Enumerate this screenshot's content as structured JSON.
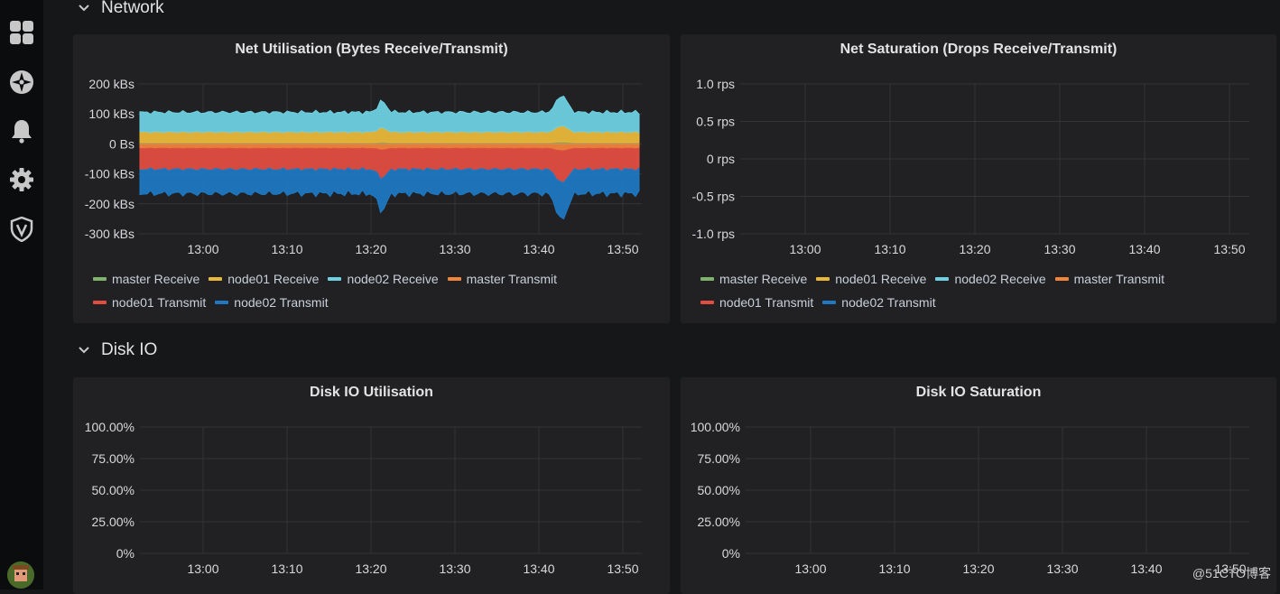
{
  "sidebar": {
    "icons": [
      "dashboards-icon",
      "explore-icon",
      "alerting-icon",
      "configuration-icon",
      "server-admin-icon"
    ]
  },
  "rows": [
    {
      "title": "Network"
    },
    {
      "title": "Disk IO"
    }
  ],
  "panels": {
    "net_util": {
      "title": "Net Utilisation (Bytes Receive/Transmit)",
      "y_ticks": [
        "200 kBs",
        "100 kBs",
        "0 Bs",
        "-100 kBs",
        "-200 kBs",
        "-300 kBs"
      ],
      "x_ticks": [
        "13:00",
        "13:10",
        "13:20",
        "13:30",
        "13:40",
        "13:50"
      ]
    },
    "net_sat": {
      "title": "Net Saturation (Drops Receive/Transmit)",
      "y_ticks": [
        "1.0 rps",
        "0.5 rps",
        "0 rps",
        "-0.5 rps",
        "-1.0 rps"
      ],
      "x_ticks": [
        "13:00",
        "13:10",
        "13:20",
        "13:30",
        "13:40",
        "13:50"
      ]
    },
    "disk_util": {
      "title": "Disk IO Utilisation",
      "y_ticks": [
        "100.00%",
        "75.00%",
        "50.00%",
        "25.00%",
        "0%"
      ],
      "x_ticks": [
        "13:00",
        "13:10",
        "13:20",
        "13:30",
        "13:40",
        "13:50"
      ]
    },
    "disk_sat": {
      "title": "Disk IO Saturation",
      "y_ticks": [
        "100.00%",
        "75.00%",
        "50.00%",
        "25.00%",
        "0%"
      ],
      "x_ticks": [
        "13:00",
        "13:10",
        "13:20",
        "13:30",
        "13:40",
        "13:50"
      ]
    }
  },
  "legend": [
    {
      "label": "master Receive",
      "color": "#7eb26d"
    },
    {
      "label": "node01 Receive",
      "color": "#eab839"
    },
    {
      "label": "node02 Receive",
      "color": "#6ed0e0"
    },
    {
      "label": "master Transmit",
      "color": "#ef843c"
    },
    {
      "label": "node01 Transmit",
      "color": "#e24d42"
    },
    {
      "label": "node02 Transmit",
      "color": "#1f78c1"
    }
  ],
  "watermark": "@51CTO博客",
  "chart_data": [
    {
      "type": "area",
      "title": "Net Utilisation (Bytes Receive/Transmit)",
      "x": [
        "13:00",
        "13:10",
        "13:20",
        "13:30",
        "13:40",
        "13:50"
      ],
      "ylim": [
        -300,
        200
      ],
      "series": [
        {
          "name": "master Receive",
          "values": [
            5,
            5,
            5,
            5,
            5,
            5
          ]
        },
        {
          "name": "node01 Receive",
          "values": [
            35,
            35,
            35,
            35,
            35,
            35
          ]
        },
        {
          "name": "node02 Receive",
          "values": [
            65,
            65,
            65,
            65,
            65,
            65
          ]
        },
        {
          "name": "master Transmit",
          "values": [
            -15,
            -15,
            -15,
            -15,
            -15,
            -15
          ]
        },
        {
          "name": "node01 Transmit",
          "values": [
            -70,
            -70,
            -70,
            -70,
            -70,
            -70
          ]
        },
        {
          "name": "node02 Transmit",
          "values": [
            -80,
            -80,
            -80,
            -80,
            -80,
            -80
          ]
        }
      ]
    },
    {
      "type": "line",
      "title": "Net Saturation (Drops Receive/Transmit)",
      "x": [
        "13:00",
        "13:10",
        "13:20",
        "13:30",
        "13:40",
        "13:50"
      ],
      "ylim": [
        -1,
        1
      ],
      "series": []
    },
    {
      "type": "line",
      "title": "Disk IO Utilisation",
      "x": [
        "13:00",
        "13:10",
        "13:20",
        "13:30",
        "13:40",
        "13:50"
      ],
      "ylim": [
        0,
        100
      ],
      "series": []
    },
    {
      "type": "line",
      "title": "Disk IO Saturation",
      "x": [
        "13:00",
        "13:10",
        "13:20",
        "13:30",
        "13:40",
        "13:50"
      ],
      "ylim": [
        0,
        100
      ],
      "series": []
    }
  ]
}
